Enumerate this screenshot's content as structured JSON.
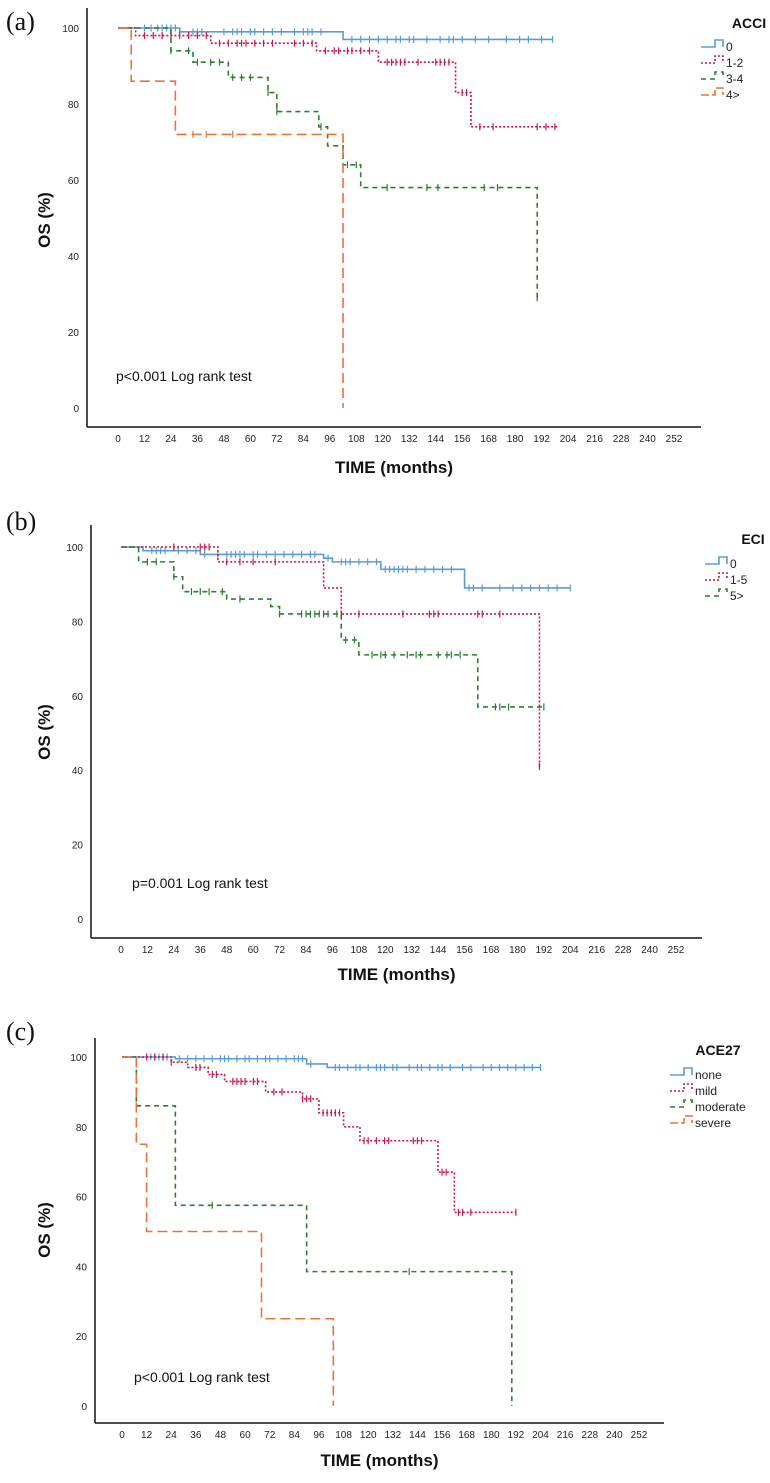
{
  "chart_data": [
    {
      "type": "line",
      "panel_label": "(a)",
      "legend_title": "ACCI",
      "legend_placement": "top-right",
      "annotation": "p<0.001 Log rank test",
      "xlabel": "TIME (months)",
      "ylabel": "OS (%)",
      "xlim": [
        0,
        252
      ],
      "ylim": [
        0,
        100
      ],
      "xticks": [
        0,
        12,
        24,
        36,
        48,
        60,
        72,
        84,
        96,
        108,
        120,
        132,
        144,
        156,
        168,
        180,
        192,
        204,
        216,
        228,
        240,
        252
      ],
      "yticks": [
        0,
        20,
        40,
        60,
        80,
        100
      ],
      "series": [
        {
          "name": "0",
          "color": "#5b9bd5",
          "style": "solid",
          "steps": [
            [
              0,
              100
            ],
            [
              28,
              99
            ],
            [
              102,
              97
            ]
          ],
          "end": 197,
          "censored": [
            12,
            15,
            18,
            20,
            22,
            24,
            26,
            34,
            36,
            38,
            48,
            52,
            54,
            56,
            60,
            62,
            66,
            70,
            74,
            80,
            84,
            86,
            88,
            92,
            106,
            110,
            114,
            118,
            122,
            126,
            128,
            132,
            134,
            140,
            146,
            150,
            152,
            156,
            162,
            168,
            176,
            182,
            186,
            192,
            197
          ]
        },
        {
          "name": "1-2",
          "color": "#c8174a",
          "style": "dotted",
          "steps": [
            [
              0,
              100
            ],
            [
              8,
              98
            ],
            [
              42,
              96
            ],
            [
              90,
              94
            ],
            [
              118,
              91
            ],
            [
              153,
              83
            ],
            [
              160,
              74
            ]
          ],
          "end": 200,
          "censored": [
            12,
            16,
            20,
            24,
            28,
            32,
            36,
            40,
            46,
            50,
            54,
            56,
            58,
            62,
            66,
            70,
            80,
            84,
            88,
            94,
            98,
            100,
            104,
            106,
            110,
            114,
            122,
            124,
            126,
            128,
            130,
            136,
            144,
            146,
            148,
            150,
            156,
            158,
            164,
            170,
            190,
            194,
            198
          ]
        },
        {
          "name": "3-4",
          "color": "#2e7d32",
          "style": "dashed",
          "steps": [
            [
              0,
              100
            ],
            [
              24,
              94
            ],
            [
              34,
              91
            ],
            [
              50,
              87
            ],
            [
              68,
              83
            ],
            [
              72,
              78
            ],
            [
              91,
              74
            ],
            [
              95,
              69
            ],
            [
              102,
              64
            ],
            [
              110,
              58
            ],
            [
              190,
              29
            ]
          ],
          "end": 190,
          "censored": [
            24,
            32,
            36,
            42,
            46,
            52,
            56,
            60,
            68,
            72,
            92,
            104,
            108,
            122,
            140,
            145,
            166,
            172,
            190
          ]
        },
        {
          "name": "4>",
          "color": "#e8743b",
          "style": "longdash",
          "steps": [
            [
              0,
              100
            ],
            [
              6,
              86
            ],
            [
              26,
              72
            ],
            [
              102,
              0
            ]
          ],
          "end": 102,
          "censored": [
            34,
            40,
            52
          ]
        }
      ]
    },
    {
      "type": "line",
      "panel_label": "(b)",
      "legend_title": "ECI",
      "legend_placement": "top-right",
      "annotation": "p=0.001 Log rank test",
      "xlabel": "TIME (months)",
      "ylabel": "OS (%)",
      "xlim": [
        0,
        252
      ],
      "ylim": [
        0,
        100
      ],
      "xticks": [
        0,
        12,
        24,
        36,
        48,
        60,
        72,
        84,
        96,
        108,
        120,
        132,
        144,
        156,
        168,
        180,
        192,
        204,
        216,
        228,
        240,
        252
      ],
      "yticks": [
        0,
        20,
        40,
        60,
        80,
        100
      ],
      "series": [
        {
          "name": "0",
          "color": "#5b9bd5",
          "style": "solid",
          "steps": [
            [
              0,
              100
            ],
            [
              10,
              99
            ],
            [
              36,
              98
            ],
            [
              92,
              97
            ],
            [
              96,
              96
            ],
            [
              118,
              94
            ],
            [
              156,
              89
            ]
          ],
          "end": 204,
          "censored": [
            14,
            16,
            18,
            20,
            26,
            30,
            34,
            38,
            44,
            48,
            50,
            52,
            54,
            56,
            60,
            62,
            66,
            70,
            74,
            78,
            82,
            86,
            88,
            94,
            100,
            102,
            104,
            108,
            112,
            116,
            120,
            122,
            124,
            126,
            128,
            130,
            134,
            138,
            142,
            146,
            150,
            158,
            160,
            164,
            172,
            178,
            182,
            186,
            190,
            194,
            198,
            204
          ]
        },
        {
          "name": "1-5",
          "color": "#c8174a",
          "style": "dotted",
          "steps": [
            [
              0,
              100
            ],
            [
              44,
              96
            ],
            [
              92,
              89
            ],
            [
              100,
              82
            ],
            [
              190,
              41
            ]
          ],
          "end": 190,
          "censored": [
            24,
            36,
            38,
            40,
            48,
            54,
            60,
            70,
            100,
            108,
            128,
            140,
            142,
            144,
            162,
            164,
            172,
            190
          ]
        },
        {
          "name": "5>",
          "color": "#2e7d32",
          "style": "dashed",
          "steps": [
            [
              0,
              100
            ],
            [
              8,
              96
            ],
            [
              24,
              92
            ],
            [
              28,
              88
            ],
            [
              48,
              86
            ],
            [
              68,
              84
            ],
            [
              72,
              82
            ],
            [
              100,
              75
            ],
            [
              108,
              71
            ],
            [
              162,
              57
            ]
          ],
          "end": 192,
          "censored": [
            12,
            16,
            24,
            32,
            36,
            40,
            46,
            54,
            72,
            82,
            84,
            86,
            88,
            90,
            92,
            94,
            98,
            102,
            106,
            114,
            118,
            120,
            124,
            130,
            134,
            136,
            144,
            148,
            150,
            154,
            170,
            172,
            176,
            192
          ]
        }
      ]
    },
    {
      "type": "line",
      "panel_label": "(c)",
      "legend_title": "ACE27",
      "legend_placement": "top-right",
      "annotation": "p<0.001 Log rank test",
      "xlabel": "TIME (months)",
      "ylabel": "OS (%)",
      "xlim": [
        0,
        252
      ],
      "ylim": [
        0,
        100
      ],
      "xticks": [
        0,
        12,
        24,
        36,
        48,
        60,
        72,
        84,
        96,
        108,
        120,
        132,
        144,
        156,
        168,
        180,
        192,
        204,
        216,
        228,
        240,
        252
      ],
      "yticks": [
        0,
        20,
        40,
        60,
        80,
        100
      ],
      "series": [
        {
          "name": "none",
          "color": "#5b9bd5",
          "style": "solid",
          "steps": [
            [
              0,
              100
            ],
            [
              26,
              99.5
            ],
            [
              90,
              98
            ],
            [
              100,
              97
            ]
          ],
          "end": 204,
          "censored": [
            14,
            16,
            18,
            20,
            22,
            28,
            32,
            36,
            40,
            44,
            48,
            50,
            52,
            56,
            60,
            62,
            66,
            70,
            72,
            76,
            80,
            84,
            86,
            88,
            92,
            104,
            106,
            110,
            114,
            116,
            120,
            124,
            126,
            128,
            132,
            134,
            140,
            144,
            146,
            150,
            154,
            156,
            160,
            166,
            170,
            176,
            180,
            184,
            188,
            192,
            196,
            200,
            204
          ]
        },
        {
          "name": "mild",
          "color": "#c8174a",
          "style": "dotted",
          "steps": [
            [
              0,
              100
            ],
            [
              24,
              98.5
            ],
            [
              32,
              97
            ],
            [
              42,
              95
            ],
            [
              50,
              93
            ],
            [
              70,
              90
            ],
            [
              88,
              88
            ],
            [
              96,
              84
            ],
            [
              108,
              80
            ],
            [
              116,
              76
            ],
            [
              154,
              67
            ],
            [
              162,
              55.5
            ]
          ],
          "end": 192,
          "censored": [
            12,
            16,
            20,
            24,
            36,
            38,
            44,
            46,
            54,
            56,
            58,
            60,
            64,
            66,
            74,
            78,
            88,
            90,
            92,
            98,
            100,
            102,
            104,
            106,
            118,
            120,
            124,
            128,
            130,
            142,
            144,
            146,
            156,
            158,
            164,
            166,
            170,
            192
          ]
        },
        {
          "name": "moderate",
          "color": "#2e7d32",
          "style": "dashed",
          "steps": [
            [
              0,
              100
            ],
            [
              7,
              86
            ],
            [
              26,
              57.5
            ],
            [
              90,
              38.5
            ],
            [
              190,
              0
            ]
          ],
          "end": 190,
          "censored": [
            44,
            140
          ]
        },
        {
          "name": "severe",
          "color": "#e8743b",
          "style": "longdash",
          "steps": [
            [
              0,
              100
            ],
            [
              7,
              75
            ],
            [
              12,
              50
            ],
            [
              68,
              25
            ],
            [
              103,
              0
            ]
          ],
          "end": 103,
          "censored": []
        }
      ]
    }
  ]
}
